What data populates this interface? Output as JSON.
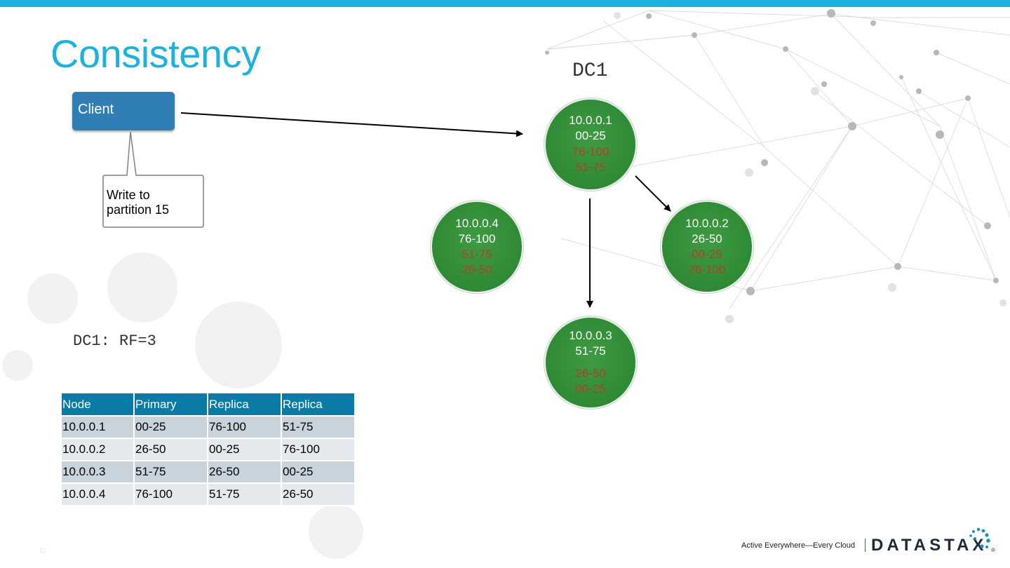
{
  "slide": {
    "title": "Consistency",
    "number": "11",
    "accent_color": "#1bb3de"
  },
  "client": {
    "label": "Client"
  },
  "callout": {
    "line1": "Write to",
    "line2": "partition 15"
  },
  "datacenter": {
    "label": "DC1",
    "rf_label": "DC1: RF=3",
    "nodes": [
      {
        "ip": "10.0.0.1",
        "primary": "00-25",
        "replicas": [
          "76-100",
          "51-75"
        ]
      },
      {
        "ip": "10.0.0.2",
        "primary": "26-50",
        "replicas": [
          "00-25",
          "76-100"
        ]
      },
      {
        "ip": "10.0.0.3",
        "primary": "51-75",
        "replicas": [
          "26-50",
          "00-25"
        ]
      },
      {
        "ip": "10.0.0.4",
        "primary": "76-100",
        "replicas": [
          "51-75",
          "26-50"
        ]
      }
    ],
    "node_color": "#2e8a34",
    "replica_text_color": "#c0392b"
  },
  "table": {
    "headers": [
      "Node",
      "Primary",
      "Replica",
      "Replica"
    ],
    "rows": [
      [
        "10.0.0.1",
        "00-25",
        "76-100",
        "51-75"
      ],
      [
        "10.0.0.2",
        "26-50",
        "00-25",
        "76-100"
      ],
      [
        "10.0.0.3",
        "51-75",
        "26-50",
        "00-25"
      ],
      [
        "10.0.0.4",
        "76-100",
        "51-75",
        "26-50"
      ]
    ],
    "header_color": "#0a7ba4"
  },
  "footer": {
    "tagline": "Active Everywhere—Every Cloud",
    "logo": "DATASTAX",
    "logo_icon": "datastax-dots-icon"
  }
}
